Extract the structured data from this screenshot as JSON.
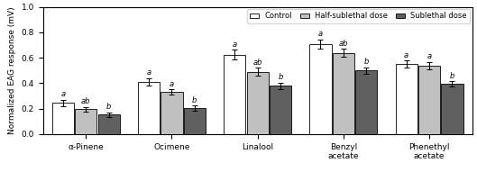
{
  "chart_data": {
    "type": "bar",
    "categories": [
      "α-Pinene",
      "Ocimene",
      "Linalool",
      "Benzyl\nacetate",
      "Phenethyl\nacetate"
    ],
    "ylabel": "Normalized EAG response (mV)",
    "ylim": [
      0.0,
      1.0
    ],
    "yticks": [
      0.0,
      0.2,
      0.4,
      0.6,
      0.8,
      1.0
    ],
    "legend": "upper right",
    "series": [
      {
        "name": "Control",
        "color": "#ffffff",
        "values": [
          0.245,
          0.41,
          0.625,
          0.71,
          0.55
        ],
        "errors": [
          0.025,
          0.03,
          0.04,
          0.035,
          0.03
        ],
        "annotations": [
          "a",
          "a",
          "a",
          "a",
          "a"
        ]
      },
      {
        "name": "Half-sublethal dose",
        "color": "#c0c0c0",
        "values": [
          0.195,
          0.33,
          0.49,
          0.64,
          0.54
        ],
        "errors": [
          0.02,
          0.022,
          0.03,
          0.03,
          0.028
        ],
        "annotations": [
          "ab",
          "a",
          "ab",
          "ab",
          "a"
        ]
      },
      {
        "name": "Sublethal dose",
        "color": "#606060",
        "values": [
          0.155,
          0.205,
          0.38,
          0.5,
          0.395
        ],
        "errors": [
          0.018,
          0.018,
          0.025,
          0.025,
          0.02
        ],
        "annotations": [
          "b",
          "b",
          "b",
          "b",
          "b"
        ]
      }
    ]
  }
}
